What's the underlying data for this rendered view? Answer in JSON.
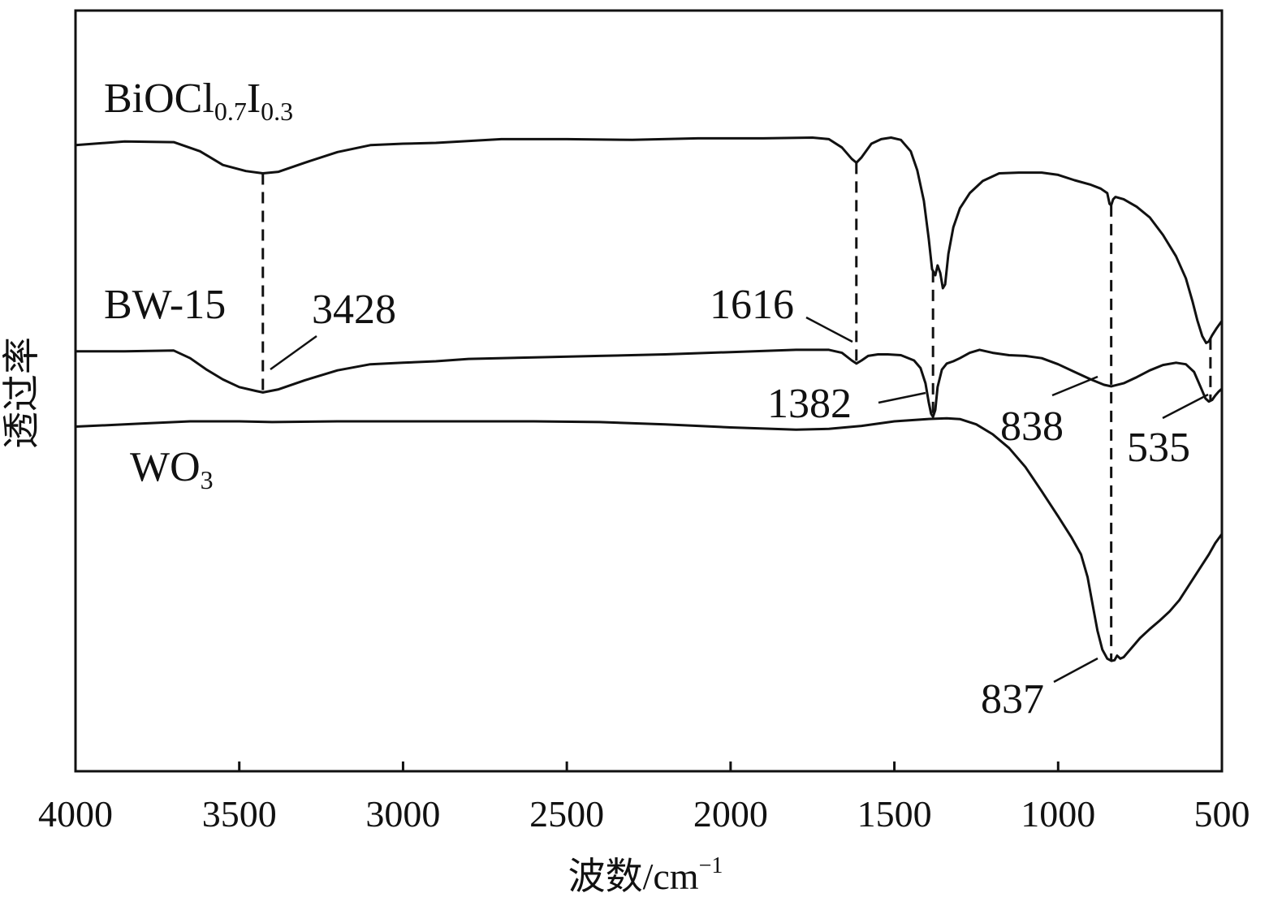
{
  "chart_data": {
    "type": "line",
    "xlabel": "波数/cm",
    "xlabel_sup": "−1",
    "ylabel": "透过率",
    "xlim": [
      4000,
      500
    ],
    "x_reversed": true,
    "yticks": "none",
    "ylim": [
      0,
      100
    ],
    "x_ticks": [
      4000,
      3500,
      3000,
      2500,
      2000,
      1500,
      1000,
      500
    ],
    "x_tick_labels": [
      "4000",
      "3500",
      "3000",
      "2500",
      "2000",
      "1500",
      "1000",
      "500"
    ],
    "grid": false,
    "series": [
      {
        "name": "BiOCl0.7I0.3",
        "label_parts": [
          {
            "text": "BiOCl",
            "sub": false
          },
          {
            "text": "0.7",
            "sub": true
          },
          {
            "text": "I",
            "sub": false
          },
          {
            "text": "0.3",
            "sub": true
          }
        ],
        "points": [
          [
            4000,
            82.3
          ],
          [
            3850,
            82.8
          ],
          [
            3700,
            82.7
          ],
          [
            3620,
            81.5
          ],
          [
            3550,
            79.7
          ],
          [
            3480,
            78.9
          ],
          [
            3428,
            78.6
          ],
          [
            3380,
            78.8
          ],
          [
            3300,
            80.0
          ],
          [
            3200,
            81.4
          ],
          [
            3100,
            82.3
          ],
          [
            3000,
            82.5
          ],
          [
            2900,
            82.6
          ],
          [
            2700,
            83.1
          ],
          [
            2500,
            83.1
          ],
          [
            2300,
            83.0
          ],
          [
            2100,
            83.2
          ],
          [
            1900,
            83.2
          ],
          [
            1750,
            83.3
          ],
          [
            1700,
            83.1
          ],
          [
            1660,
            82.0
          ],
          [
            1630,
            80.5
          ],
          [
            1616,
            80.0
          ],
          [
            1600,
            80.7
          ],
          [
            1570,
            82.5
          ],
          [
            1540,
            83.1
          ],
          [
            1510,
            83.3
          ],
          [
            1480,
            83.0
          ],
          [
            1450,
            81.5
          ],
          [
            1430,
            79.0
          ],
          [
            1410,
            75.0
          ],
          [
            1395,
            70.0
          ],
          [
            1385,
            66.0
          ],
          [
            1375,
            65.2
          ],
          [
            1368,
            66.5
          ],
          [
            1360,
            65.5
          ],
          [
            1352,
            63.5
          ],
          [
            1345,
            64.0
          ],
          [
            1335,
            68.0
          ],
          [
            1320,
            71.5
          ],
          [
            1300,
            74.0
          ],
          [
            1270,
            76.0
          ],
          [
            1230,
            77.6
          ],
          [
            1180,
            78.6
          ],
          [
            1120,
            78.7
          ],
          [
            1050,
            78.7
          ],
          [
            1000,
            78.4
          ],
          [
            950,
            77.7
          ],
          [
            900,
            77.1
          ],
          [
            870,
            76.6
          ],
          [
            850,
            76.0
          ],
          [
            843,
            74.6
          ],
          [
            838,
            74.4
          ],
          [
            832,
            75.2
          ],
          [
            825,
            75.5
          ],
          [
            800,
            75.2
          ],
          [
            760,
            74.2
          ],
          [
            720,
            72.8
          ],
          [
            680,
            70.5
          ],
          [
            640,
            67.7
          ],
          [
            610,
            64.8
          ],
          [
            590,
            61.8
          ],
          [
            575,
            59.3
          ],
          [
            560,
            57.2
          ],
          [
            548,
            56.3
          ],
          [
            540,
            56.5
          ],
          [
            530,
            57.3
          ],
          [
            515,
            58.3
          ],
          [
            500,
            59.2
          ]
        ]
      },
      {
        "name": "BW-15",
        "label_parts": [
          {
            "text": "BW-15",
            "sub": false
          }
        ],
        "points": [
          [
            4000,
            55.2
          ],
          [
            3850,
            55.2
          ],
          [
            3700,
            55.3
          ],
          [
            3650,
            54.3
          ],
          [
            3600,
            52.8
          ],
          [
            3550,
            51.5
          ],
          [
            3500,
            50.5
          ],
          [
            3450,
            50.0
          ],
          [
            3428,
            49.8
          ],
          [
            3380,
            50.2
          ],
          [
            3300,
            51.4
          ],
          [
            3200,
            52.7
          ],
          [
            3100,
            53.5
          ],
          [
            3000,
            53.7
          ],
          [
            2900,
            53.9
          ],
          [
            2800,
            54.2
          ],
          [
            2600,
            54.4
          ],
          [
            2400,
            54.6
          ],
          [
            2200,
            54.8
          ],
          [
            2000,
            55.1
          ],
          [
            1800,
            55.4
          ],
          [
            1700,
            55.4
          ],
          [
            1660,
            55.0
          ],
          [
            1630,
            54.0
          ],
          [
            1616,
            53.6
          ],
          [
            1600,
            54.0
          ],
          [
            1580,
            54.6
          ],
          [
            1550,
            54.8
          ],
          [
            1520,
            54.8
          ],
          [
            1480,
            54.7
          ],
          [
            1440,
            54.0
          ],
          [
            1420,
            53.0
          ],
          [
            1405,
            51.0
          ],
          [
            1395,
            48.5
          ],
          [
            1388,
            47.0
          ],
          [
            1382,
            46.6
          ],
          [
            1375,
            47.5
          ],
          [
            1368,
            50.5
          ],
          [
            1355,
            52.8
          ],
          [
            1340,
            53.6
          ],
          [
            1320,
            53.9
          ],
          [
            1300,
            54.3
          ],
          [
            1270,
            55.0
          ],
          [
            1240,
            55.4
          ],
          [
            1200,
            55.0
          ],
          [
            1150,
            54.7
          ],
          [
            1100,
            54.6
          ],
          [
            1050,
            54.3
          ],
          [
            1000,
            53.5
          ],
          [
            950,
            52.5
          ],
          [
            900,
            51.5
          ],
          [
            860,
            50.8
          ],
          [
            838,
            50.6
          ],
          [
            800,
            51.0
          ],
          [
            760,
            51.8
          ],
          [
            720,
            52.7
          ],
          [
            680,
            53.4
          ],
          [
            640,
            53.7
          ],
          [
            610,
            53.5
          ],
          [
            585,
            52.5
          ],
          [
            565,
            50.5
          ],
          [
            550,
            49.0
          ],
          [
            540,
            48.6
          ],
          [
            530,
            48.8
          ],
          [
            520,
            49.4
          ],
          [
            510,
            49.9
          ],
          [
            500,
            50.3
          ]
        ]
      },
      {
        "name": "WO3",
        "label_parts": [
          {
            "text": "WO",
            "sub": false
          },
          {
            "text": "3",
            "sub": true
          }
        ],
        "points": [
          [
            4000,
            45.3
          ],
          [
            3800,
            45.7
          ],
          [
            3650,
            46.0
          ],
          [
            3500,
            46.0
          ],
          [
            3400,
            45.9
          ],
          [
            3200,
            46.0
          ],
          [
            3000,
            46.0
          ],
          [
            2800,
            46.0
          ],
          [
            2600,
            46.0
          ],
          [
            2400,
            45.9
          ],
          [
            2200,
            45.6
          ],
          [
            2000,
            45.2
          ],
          [
            1800,
            44.9
          ],
          [
            1700,
            45.0
          ],
          [
            1600,
            45.4
          ],
          [
            1500,
            46.0
          ],
          [
            1400,
            46.3
          ],
          [
            1340,
            46.4
          ],
          [
            1300,
            46.3
          ],
          [
            1250,
            45.6
          ],
          [
            1200,
            44.3
          ],
          [
            1150,
            42.5
          ],
          [
            1100,
            40.0
          ],
          [
            1050,
            36.8
          ],
          [
            1000,
            33.5
          ],
          [
            960,
            30.8
          ],
          [
            930,
            28.5
          ],
          [
            910,
            25.5
          ],
          [
            895,
            22.0
          ],
          [
            880,
            18.5
          ],
          [
            865,
            16.0
          ],
          [
            850,
            14.8
          ],
          [
            837,
            14.5
          ],
          [
            828,
            14.6
          ],
          [
            820,
            15.2
          ],
          [
            810,
            14.8
          ],
          [
            800,
            15.0
          ],
          [
            790,
            15.5
          ],
          [
            770,
            16.5
          ],
          [
            750,
            17.5
          ],
          [
            720,
            18.7
          ],
          [
            690,
            19.8
          ],
          [
            660,
            21.0
          ],
          [
            630,
            22.5
          ],
          [
            600,
            24.5
          ],
          [
            570,
            26.5
          ],
          [
            540,
            28.5
          ],
          [
            520,
            30.0
          ],
          [
            500,
            31.2
          ]
        ]
      }
    ],
    "annotations": [
      {
        "text": "3428",
        "x": 3428
      },
      {
        "text": "1616",
        "x": 1616
      },
      {
        "text": "1382",
        "x": 1382
      },
      {
        "text": "838",
        "x": 838
      },
      {
        "text": "535",
        "x": 535
      },
      {
        "text": "837",
        "x": 837
      }
    ],
    "reference_lines_x": [
      3428,
      1616,
      1382,
      838,
      535
    ]
  }
}
